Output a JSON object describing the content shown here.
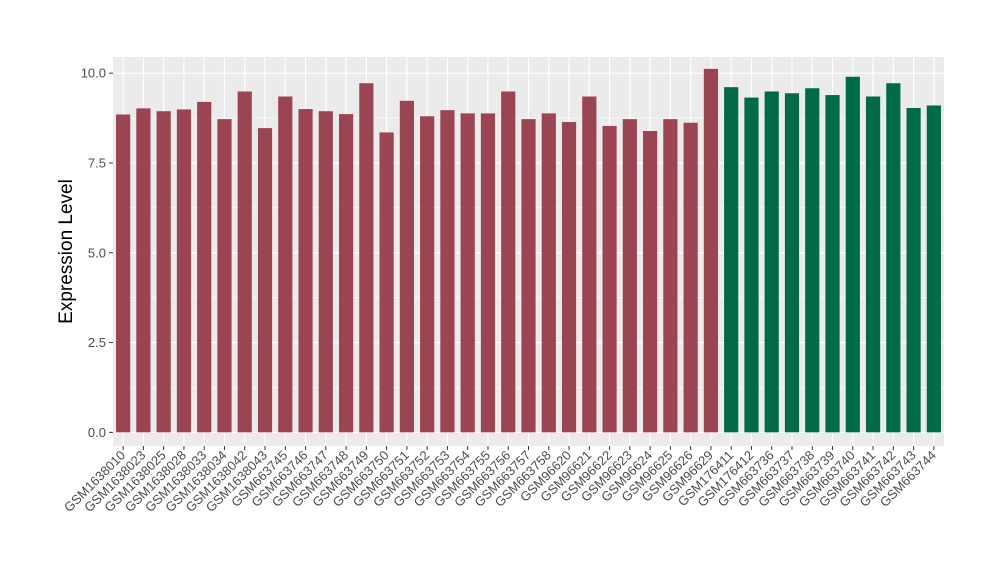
{
  "chart_data": {
    "type": "bar",
    "title": "",
    "xlabel": "",
    "ylabel": "Expression Level",
    "ylim": [
      -0.38,
      10.45
    ],
    "yticks": [
      0.0,
      2.5,
      5.0,
      7.5,
      10.0
    ],
    "ytick_labels": [
      "0.0",
      "2.5",
      "5.0",
      "7.5",
      "10.0"
    ],
    "grid": true,
    "legend": "none",
    "panel_background": "#EBEBEB",
    "grid_color": "#FFFFFF",
    "categories": [
      "GSM1638010",
      "GSM1638023",
      "GSM1638025",
      "GSM1638028",
      "GSM1638033",
      "GSM1638034",
      "GSM1638042",
      "GSM1638043",
      "GSM663745",
      "GSM663746",
      "GSM663747",
      "GSM663748",
      "GSM663749",
      "GSM663750",
      "GSM663751",
      "GSM663752",
      "GSM663753",
      "GSM663754",
      "GSM663755",
      "GSM663756",
      "GSM663757",
      "GSM663758",
      "GSM96620",
      "GSM96621",
      "GSM96622",
      "GSM96623",
      "GSM96624",
      "GSM96625",
      "GSM96626",
      "GSM96629",
      "GSM176411",
      "GSM176412",
      "GSM663736",
      "GSM663737",
      "GSM663738",
      "GSM663739",
      "GSM663740",
      "GSM663741",
      "GSM663742",
      "GSM663743",
      "GSM663744"
    ],
    "values": [
      8.85,
      9.02,
      8.94,
      8.99,
      9.2,
      8.72,
      9.49,
      8.47,
      9.35,
      9.0,
      8.94,
      8.86,
      9.72,
      8.35,
      9.23,
      8.8,
      8.97,
      8.88,
      8.88,
      9.49,
      8.72,
      8.88,
      8.64,
      9.35,
      8.53,
      8.72,
      8.39,
      8.72,
      8.62,
      10.12,
      9.61,
      9.32,
      9.49,
      9.44,
      9.58,
      9.39,
      9.9,
      9.35,
      9.72,
      9.03,
      9.1
    ],
    "groups": [
      {
        "color": "#9B4452",
        "from": 0,
        "to": 29
      },
      {
        "color": "#006B46",
        "from": 30,
        "to": 40
      }
    ]
  }
}
